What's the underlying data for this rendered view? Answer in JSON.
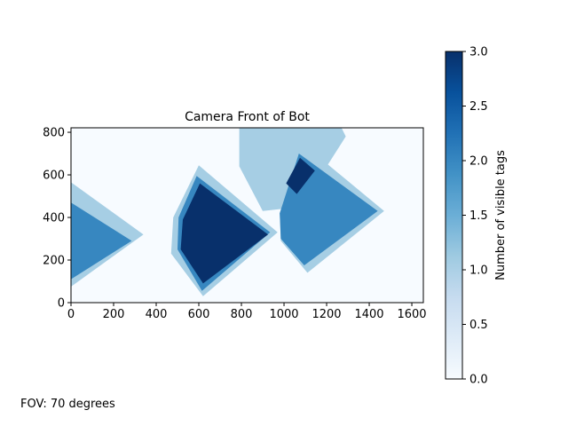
{
  "chart_data": {
    "type": "heatmap",
    "title": "Camera Front of Bot",
    "xlabel": "",
    "ylabel": "",
    "xlim": [
      0,
      1654
    ],
    "ylim": [
      0,
      821
    ],
    "xticks": [
      0,
      200,
      400,
      600,
      800,
      1000,
      1200,
      1400,
      1600
    ],
    "yticks": [
      0,
      200,
      400,
      600,
      800
    ],
    "colorbar": {
      "label": "Number of visible tags",
      "range": [
        0.0,
        3.0
      ],
      "ticks": [
        "0.0",
        "0.5",
        "1.0",
        "1.5",
        "2.0",
        "2.5",
        "3.0"
      ],
      "colormap": "Blues"
    },
    "colors": {
      "0": "#f7fbff",
      "1": "#a6cee4",
      "2": "#3787c0",
      "3": "#08306b"
    },
    "regions": [
      {
        "value": 1,
        "polygon": [
          [
            0,
            565
          ],
          [
            340,
            320
          ],
          [
            0,
            75
          ]
        ]
      },
      {
        "value": 2,
        "polygon": [
          [
            0,
            470
          ],
          [
            285,
            290
          ],
          [
            0,
            110
          ]
        ]
      },
      {
        "value": 1,
        "polygon": [
          [
            480,
            400
          ],
          [
            600,
            645
          ],
          [
            970,
            330
          ],
          [
            620,
            30
          ],
          [
            470,
            230
          ]
        ]
      },
      {
        "value": 2,
        "polygon": [
          [
            505,
            400
          ],
          [
            590,
            595
          ],
          [
            935,
            330
          ],
          [
            615,
            55
          ],
          [
            500,
            250
          ]
        ]
      },
      {
        "value": 3,
        "polygon": [
          [
            525,
            390
          ],
          [
            605,
            560
          ],
          [
            925,
            320
          ],
          [
            620,
            90
          ],
          [
            515,
            250
          ]
        ]
      },
      {
        "value": 1,
        "polygon": [
          [
            790,
            821
          ],
          [
            1270,
            821
          ],
          [
            1290,
            780
          ],
          [
            1080,
            450
          ],
          [
            900,
            430
          ],
          [
            790,
            640
          ]
        ]
      },
      {
        "value": 1,
        "polygon": [
          [
            980,
            420
          ],
          [
            1090,
            745
          ],
          [
            1470,
            430
          ],
          [
            1110,
            140
          ],
          [
            985,
            290
          ]
        ]
      },
      {
        "value": 2,
        "polygon": [
          [
            980,
            420
          ],
          [
            1070,
            700
          ],
          [
            1440,
            430
          ],
          [
            1095,
            175
          ],
          [
            985,
            300
          ]
        ]
      },
      {
        "value": 3,
        "polygon": [
          [
            1010,
            560
          ],
          [
            1075,
            680
          ],
          [
            1145,
            620
          ],
          [
            1060,
            510
          ]
        ]
      }
    ]
  },
  "caption": "FOV: 70 degrees"
}
